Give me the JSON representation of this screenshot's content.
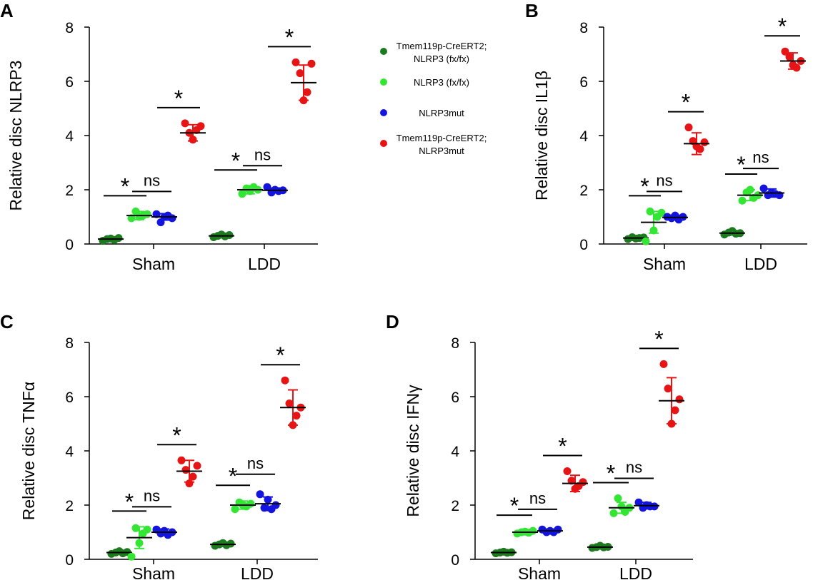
{
  "legend": {
    "items": [
      {
        "label_lines": [
          "Tmem119p-CreERT2;",
          "NLRP3 (fx/fx)"
        ],
        "color": "#1e7a1e"
      },
      {
        "label_lines": [
          "NLRP3 (fx/fx)"
        ],
        "color": "#33e633"
      },
      {
        "label_lines": [
          "NLRP3mut"
        ],
        "color": "#1414e0"
      },
      {
        "label_lines": [
          "Tmem119p-CreERT2;",
          "NLRP3mut"
        ],
        "color": "#e61414"
      }
    ]
  },
  "chart_data": [
    {
      "panel": "A",
      "type": "scatter",
      "ylabel": "Relative disc NLRP3",
      "ylim": [
        0,
        8
      ],
      "yticks": [
        0,
        2,
        4,
        6,
        8
      ],
      "categories": [
        "Sham",
        "LDD"
      ],
      "series": [
        {
          "name": "Tmem119p-CreERT2; NLRP3 (fx/fx)",
          "mean": [
            0.18,
            0.3
          ],
          "sd": [
            0.05,
            0.07
          ],
          "points": [
            [
              0.12,
              0.18,
              0.2,
              0.15,
              0.22
            ],
            [
              0.25,
              0.3,
              0.35,
              0.28,
              0.33
            ]
          ]
        },
        {
          "name": "NLRP3 (fx/fx)",
          "mean": [
            1.05,
            2.0
          ],
          "sd": [
            0.15,
            0.15
          ],
          "points": [
            [
              0.95,
              1.2,
              1.0,
              1.05,
              1.1
            ],
            [
              1.85,
              2.05,
              1.95,
              2.1,
              2.0
            ]
          ]
        },
        {
          "name": "NLRP3mut",
          "mean": [
            1.0,
            1.98
          ],
          "sd": [
            0.12,
            0.08
          ],
          "points": [
            [
              1.1,
              0.8,
              1.0,
              1.05,
              0.95
            ],
            [
              2.1,
              1.9,
              2.0,
              1.95,
              1.98
            ]
          ]
        },
        {
          "name": "Tmem119p-CreERT2; NLRP3mut",
          "mean": [
            4.1,
            5.95
          ],
          "sd": [
            0.3,
            0.65
          ],
          "points": [
            [
              4.45,
              4.1,
              3.85,
              4.2,
              4.35
            ],
            [
              6.7,
              6.3,
              5.3,
              5.6,
              6.65
            ]
          ]
        }
      ],
      "comparisons": [
        {
          "label": "*",
          "group": "Sham",
          "between": [
            "Tmem119p-CreERT2; NLRP3 (fx/fx)",
            "NLRP3 (fx/fx)"
          ]
        },
        {
          "label": "ns",
          "group": "Sham",
          "between": [
            "NLRP3 (fx/fx)",
            "NLRP3mut"
          ]
        },
        {
          "label": "*",
          "group": "Sham",
          "between": [
            "NLRP3mut",
            "Tmem119p-CreERT2; NLRP3mut"
          ]
        },
        {
          "label": "*",
          "group": "LDD",
          "between": [
            "Tmem119p-CreERT2; NLRP3 (fx/fx)",
            "NLRP3 (fx/fx)"
          ]
        },
        {
          "label": "ns",
          "group": "LDD",
          "between": [
            "NLRP3 (fx/fx)",
            "NLRP3mut"
          ]
        },
        {
          "label": "*",
          "group": "LDD",
          "between": [
            "NLRP3mut",
            "Tmem119p-CreERT2; NLRP3mut"
          ]
        }
      ]
    },
    {
      "panel": "B",
      "type": "scatter",
      "ylabel": "Relative disc IL1β",
      "ylim": [
        0,
        8
      ],
      "yticks": [
        0,
        2,
        4,
        6,
        8
      ],
      "categories": [
        "Sham",
        "LDD"
      ],
      "series": [
        {
          "name": "Tmem119p-CreERT2; NLRP3 (fx/fx)",
          "mean": [
            0.22,
            0.4
          ],
          "sd": [
            0.05,
            0.07
          ],
          "points": [
            [
              0.18,
              0.25,
              0.2,
              0.22,
              0.24
            ],
            [
              0.35,
              0.42,
              0.48,
              0.38,
              0.4
            ]
          ]
        },
        {
          "name": "NLRP3 (fx/fx)",
          "mean": [
            0.8,
            1.8
          ],
          "sd": [
            0.4,
            0.2
          ],
          "points": [
            [
              0.1,
              1.2,
              0.5,
              1.0,
              1.15
            ],
            [
              1.6,
              1.9,
              2.0,
              1.7,
              1.8
            ]
          ]
        },
        {
          "name": "NLRP3mut",
          "mean": [
            0.98,
            1.88
          ],
          "sd": [
            0.08,
            0.15
          ],
          "points": [
            [
              1.0,
              0.95,
              1.05,
              0.9,
              1.0
            ],
            [
              2.05,
              1.8,
              1.9,
              1.85,
              1.8
            ]
          ]
        },
        {
          "name": "Tmem119p-CreERT2; NLRP3mut",
          "mean": [
            3.7,
            6.75
          ],
          "sd": [
            0.4,
            0.3
          ],
          "points": [
            [
              4.3,
              3.8,
              3.6,
              3.5,
              3.75
            ],
            [
              7.1,
              6.9,
              6.6,
              6.5,
              6.75
            ]
          ]
        }
      ],
      "comparisons": [
        {
          "label": "*",
          "group": "Sham"
        },
        {
          "label": "ns",
          "group": "Sham"
        },
        {
          "label": "*",
          "group": "Sham"
        },
        {
          "label": "*",
          "group": "LDD"
        },
        {
          "label": "ns",
          "group": "LDD"
        },
        {
          "label": "*",
          "group": "LDD"
        }
      ]
    },
    {
      "panel": "C",
      "type": "scatter",
      "ylabel": "Relative disc TNFα",
      "ylim": [
        0,
        8
      ],
      "yticks": [
        0,
        2,
        4,
        6,
        8
      ],
      "categories": [
        "Sham",
        "LDD"
      ],
      "series": [
        {
          "name": "Tmem119p-CreERT2; NLRP3 (fx/fx)",
          "mean": [
            0.25,
            0.55
          ],
          "sd": [
            0.05,
            0.07
          ],
          "points": [
            [
              0.2,
              0.25,
              0.3,
              0.22,
              0.27
            ],
            [
              0.5,
              0.55,
              0.6,
              0.52,
              0.58
            ]
          ]
        },
        {
          "name": "NLRP3 (fx/fx)",
          "mean": [
            0.8,
            2.0
          ],
          "sd": [
            0.4,
            0.15
          ],
          "points": [
            [
              0.1,
              1.15,
              0.6,
              0.95,
              1.1
            ],
            [
              1.85,
              2.1,
              2.0,
              1.95,
              2.05
            ]
          ]
        },
        {
          "name": "NLRP3mut",
          "mean": [
            1.0,
            2.05
          ],
          "sd": [
            0.12,
            0.25
          ],
          "points": [
            [
              1.1,
              0.95,
              1.05,
              0.9,
              1.0
            ],
            [
              2.4,
              1.9,
              2.2,
              1.85,
              2.0
            ]
          ]
        },
        {
          "name": "Tmem119p-CreERT2; NLRP3mut",
          "mean": [
            3.25,
            5.6
          ],
          "sd": [
            0.4,
            0.65
          ],
          "points": [
            [
              3.65,
              3.3,
              2.8,
              3.05,
              3.45
            ],
            [
              6.6,
              5.75,
              4.95,
              5.3,
              5.6
            ]
          ]
        }
      ],
      "comparisons": [
        {
          "label": "*",
          "group": "Sham"
        },
        {
          "label": "ns",
          "group": "Sham"
        },
        {
          "label": "*",
          "group": "Sham"
        },
        {
          "label": "*",
          "group": "LDD"
        },
        {
          "label": "ns",
          "group": "LDD"
        },
        {
          "label": "*",
          "group": "LDD"
        }
      ]
    },
    {
      "panel": "D",
      "type": "scatter",
      "ylabel": "Relative disc IFNγ",
      "ylim": [
        0,
        8
      ],
      "yticks": [
        0,
        2,
        4,
        6,
        8
      ],
      "categories": [
        "Sham",
        "LDD"
      ],
      "series": [
        {
          "name": "Tmem119p-CreERT2; NLRP3 (fx/fx)",
          "mean": [
            0.25,
            0.45
          ],
          "sd": [
            0.04,
            0.05
          ],
          "points": [
            [
              0.22,
              0.25,
              0.28,
              0.24,
              0.26
            ],
            [
              0.42,
              0.45,
              0.5,
              0.44,
              0.46
            ]
          ]
        },
        {
          "name": "NLRP3 (fx/fx)",
          "mean": [
            1.0,
            1.9
          ],
          "sd": [
            0.05,
            0.2
          ],
          "points": [
            [
              0.95,
              1.0,
              1.02,
              0.98,
              1.05
            ],
            [
              1.7,
              2.25,
              1.95,
              1.75,
              1.9
            ]
          ]
        },
        {
          "name": "NLRP3mut",
          "mean": [
            1.05,
            1.98
          ],
          "sd": [
            0.06,
            0.12
          ],
          "points": [
            [
              1.1,
              1.0,
              1.05,
              1.0,
              1.1
            ],
            [
              2.1,
              1.9,
              2.0,
              1.95,
              1.95
            ]
          ]
        },
        {
          "name": "Tmem119p-CreERT2; NLRP3mut",
          "mean": [
            2.8,
            5.85
          ],
          "sd": [
            0.3,
            0.85
          ],
          "points": [
            [
              3.25,
              2.9,
              2.6,
              2.7,
              2.85
            ],
            [
              7.2,
              6.3,
              5.0,
              5.5,
              5.9
            ]
          ]
        }
      ],
      "comparisons": [
        {
          "label": "*",
          "group": "Sham"
        },
        {
          "label": "ns",
          "group": "Sham"
        },
        {
          "label": "*",
          "group": "Sham"
        },
        {
          "label": "*",
          "group": "LDD"
        },
        {
          "label": "ns",
          "group": "LDD"
        },
        {
          "label": "*",
          "group": "LDD"
        }
      ]
    }
  ]
}
